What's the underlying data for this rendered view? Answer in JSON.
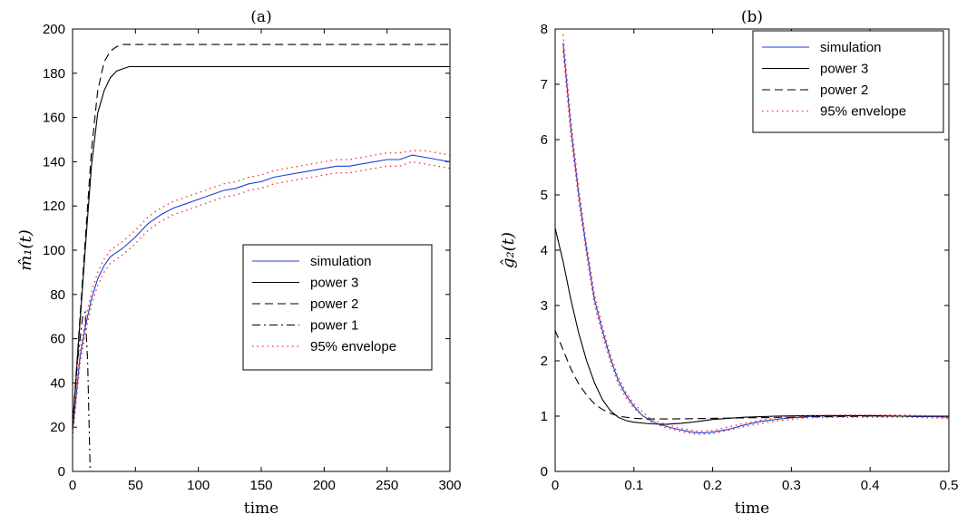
{
  "chart_data": [
    {
      "type": "line",
      "title": "(a)",
      "xlabel": "time",
      "ylabel": "m̂₁(t)",
      "xlim": [
        0,
        300
      ],
      "ylim": [
        0,
        200
      ],
      "xticks": [
        0,
        50,
        100,
        150,
        200,
        250,
        300
      ],
      "yticks": [
        0,
        20,
        40,
        60,
        80,
        100,
        120,
        140,
        160,
        180,
        200
      ],
      "legend_position": "center-right",
      "series": [
        {
          "name": "simulation",
          "color": "#1f3fd6",
          "style": "solid",
          "x": [
            0,
            3,
            6,
            10,
            15,
            20,
            25,
            30,
            35,
            40,
            50,
            60,
            70,
            80,
            90,
            100,
            110,
            120,
            130,
            140,
            150,
            160,
            170,
            180,
            190,
            200,
            210,
            220,
            230,
            240,
            250,
            260,
            270,
            280,
            290,
            300
          ],
          "y": [
            18,
            35,
            52,
            65,
            78,
            87,
            93,
            97,
            99,
            101,
            106,
            112,
            116,
            119,
            121,
            123,
            125,
            127,
            128,
            130,
            131,
            133,
            134,
            135,
            136,
            137,
            138,
            138,
            139,
            140,
            141,
            141,
            143,
            142,
            141,
            140
          ]
        },
        {
          "name": "power 3",
          "color": "#000000",
          "style": "solid",
          "x": [
            0,
            5,
            10,
            15,
            20,
            25,
            30,
            35,
            40,
            45,
            50,
            300
          ],
          "y": [
            20,
            60,
            100,
            138,
            162,
            172,
            178,
            181,
            182,
            183,
            183,
            183
          ]
        },
        {
          "name": "power 2",
          "color": "#000000",
          "style": "dashed",
          "x": [
            0,
            5,
            10,
            15,
            20,
            25,
            30,
            35,
            40,
            45,
            50,
            300
          ],
          "y": [
            20,
            62,
            104,
            145,
            172,
            185,
            190,
            192,
            193,
            193,
            193,
            193
          ]
        },
        {
          "name": "power 1",
          "color": "#000000",
          "style": "dashdot",
          "x": [
            0,
            4,
            8,
            10,
            12,
            14
          ],
          "y": [
            20,
            50,
            70,
            72,
            50,
            0
          ]
        },
        {
          "name": "95% envelope",
          "color": "#ff2a2a",
          "style": "dotted",
          "x": [
            0,
            3,
            6,
            10,
            15,
            20,
            25,
            30,
            35,
            40,
            50,
            60,
            70,
            80,
            90,
            100,
            110,
            120,
            130,
            140,
            150,
            160,
            170,
            180,
            190,
            200,
            210,
            220,
            230,
            240,
            250,
            260,
            270,
            280,
            290,
            300
          ],
          "y": [
            21,
            38,
            55,
            68,
            81,
            90,
            96,
            100,
            102,
            104,
            109,
            115,
            119,
            122,
            124,
            126,
            128,
            130,
            131,
            133,
            134,
            136,
            137,
            138,
            139,
            140,
            141,
            141,
            142,
            143,
            144,
            144,
            145,
            145,
            144,
            143
          ]
        },
        {
          "name": "",
          "color": "#ff2a2a",
          "style": "dotted",
          "x": [
            0,
            3,
            6,
            10,
            15,
            20,
            25,
            30,
            35,
            40,
            50,
            60,
            70,
            80,
            90,
            100,
            110,
            120,
            130,
            140,
            150,
            160,
            170,
            180,
            190,
            200,
            210,
            220,
            230,
            240,
            250,
            260,
            270,
            280,
            290,
            300
          ],
          "y": [
            15,
            32,
            49,
            62,
            75,
            84,
            90,
            94,
            96,
            98,
            103,
            109,
            113,
            116,
            118,
            120,
            122,
            124,
            125,
            127,
            128,
            130,
            131,
            132,
            133,
            134,
            135,
            135,
            136,
            137,
            138,
            138,
            140,
            139,
            138,
            137
          ]
        }
      ]
    },
    {
      "type": "line",
      "title": "(b)",
      "xlabel": "time",
      "ylabel": "ĝ₂(t)",
      "xlim": [
        0,
        0.5
      ],
      "ylim": [
        0,
        8
      ],
      "xticks": [
        0,
        0.1,
        0.2,
        0.3,
        0.4,
        0.5
      ],
      "yticks": [
        0,
        1,
        2,
        3,
        4,
        5,
        6,
        7,
        8
      ],
      "legend_position": "top-right",
      "series": [
        {
          "name": "simulation",
          "color": "#1f3fd6",
          "style": "solid",
          "x": [
            0.01,
            0.02,
            0.03,
            0.04,
            0.05,
            0.06,
            0.07,
            0.08,
            0.09,
            0.1,
            0.11,
            0.12,
            0.13,
            0.14,
            0.15,
            0.16,
            0.17,
            0.18,
            0.19,
            0.2,
            0.22,
            0.24,
            0.26,
            0.28,
            0.3,
            0.32,
            0.34,
            0.36,
            0.38,
            0.4,
            0.42,
            0.44,
            0.46,
            0.48,
            0.5
          ],
          "y": [
            7.75,
            6.2,
            5.0,
            4.0,
            3.1,
            2.55,
            2.05,
            1.65,
            1.38,
            1.18,
            1.02,
            0.93,
            0.86,
            0.82,
            0.78,
            0.75,
            0.72,
            0.7,
            0.7,
            0.71,
            0.76,
            0.84,
            0.9,
            0.94,
            0.97,
            0.99,
            1.0,
            1.0,
            1.01,
            1.0,
            1.0,
            1.0,
            0.99,
            0.99,
            0.98
          ]
        },
        {
          "name": "power 3",
          "color": "#000000",
          "style": "solid",
          "x": [
            0.0,
            0.01,
            0.02,
            0.03,
            0.04,
            0.05,
            0.06,
            0.07,
            0.08,
            0.09,
            0.1,
            0.12,
            0.14,
            0.16,
            0.18,
            0.2,
            0.24,
            0.28,
            0.32,
            0.36,
            0.4,
            0.44,
            0.5
          ],
          "y": [
            4.4,
            3.8,
            3.1,
            2.5,
            2.0,
            1.6,
            1.3,
            1.1,
            0.98,
            0.92,
            0.89,
            0.86,
            0.85,
            0.87,
            0.9,
            0.94,
            0.98,
            1.0,
            1.01,
            1.01,
            1.01,
            1.0,
            1.0
          ]
        },
        {
          "name": "power 2",
          "color": "#000000",
          "style": "dashed",
          "x": [
            0.0,
            0.01,
            0.02,
            0.03,
            0.04,
            0.05,
            0.06,
            0.07,
            0.08,
            0.1,
            0.12,
            0.15,
            0.2,
            0.3,
            0.4,
            0.5
          ],
          "y": [
            2.55,
            2.2,
            1.85,
            1.58,
            1.38,
            1.22,
            1.12,
            1.05,
            1.0,
            0.96,
            0.95,
            0.95,
            0.96,
            0.98,
            1.0,
            1.0
          ]
        },
        {
          "name": "95% envelope",
          "color": "#ff2a2a",
          "style": "dotted",
          "x": [
            0.01,
            0.02,
            0.03,
            0.04,
            0.05,
            0.06,
            0.07,
            0.08,
            0.09,
            0.1,
            0.12,
            0.14,
            0.16,
            0.18,
            0.2,
            0.24,
            0.28,
            0.32,
            0.36,
            0.4,
            0.44,
            0.5
          ],
          "y": [
            7.9,
            6.35,
            5.12,
            4.1,
            3.2,
            2.63,
            2.12,
            1.71,
            1.43,
            1.22,
            0.96,
            0.85,
            0.78,
            0.73,
            0.74,
            0.87,
            0.97,
            1.01,
            1.02,
            1.02,
            1.02,
            1.0
          ]
        },
        {
          "name": "",
          "color": "#ff2a2a",
          "style": "dotted",
          "x": [
            0.01,
            0.02,
            0.03,
            0.04,
            0.05,
            0.06,
            0.07,
            0.08,
            0.09,
            0.1,
            0.12,
            0.14,
            0.16,
            0.18,
            0.2,
            0.24,
            0.28,
            0.32,
            0.36,
            0.4,
            0.44,
            0.5
          ],
          "y": [
            7.6,
            6.05,
            4.88,
            3.9,
            3.0,
            2.47,
            1.98,
            1.59,
            1.33,
            1.14,
            0.9,
            0.79,
            0.72,
            0.67,
            0.68,
            0.81,
            0.91,
            0.97,
            0.98,
            0.98,
            0.98,
            0.96
          ]
        }
      ]
    }
  ]
}
